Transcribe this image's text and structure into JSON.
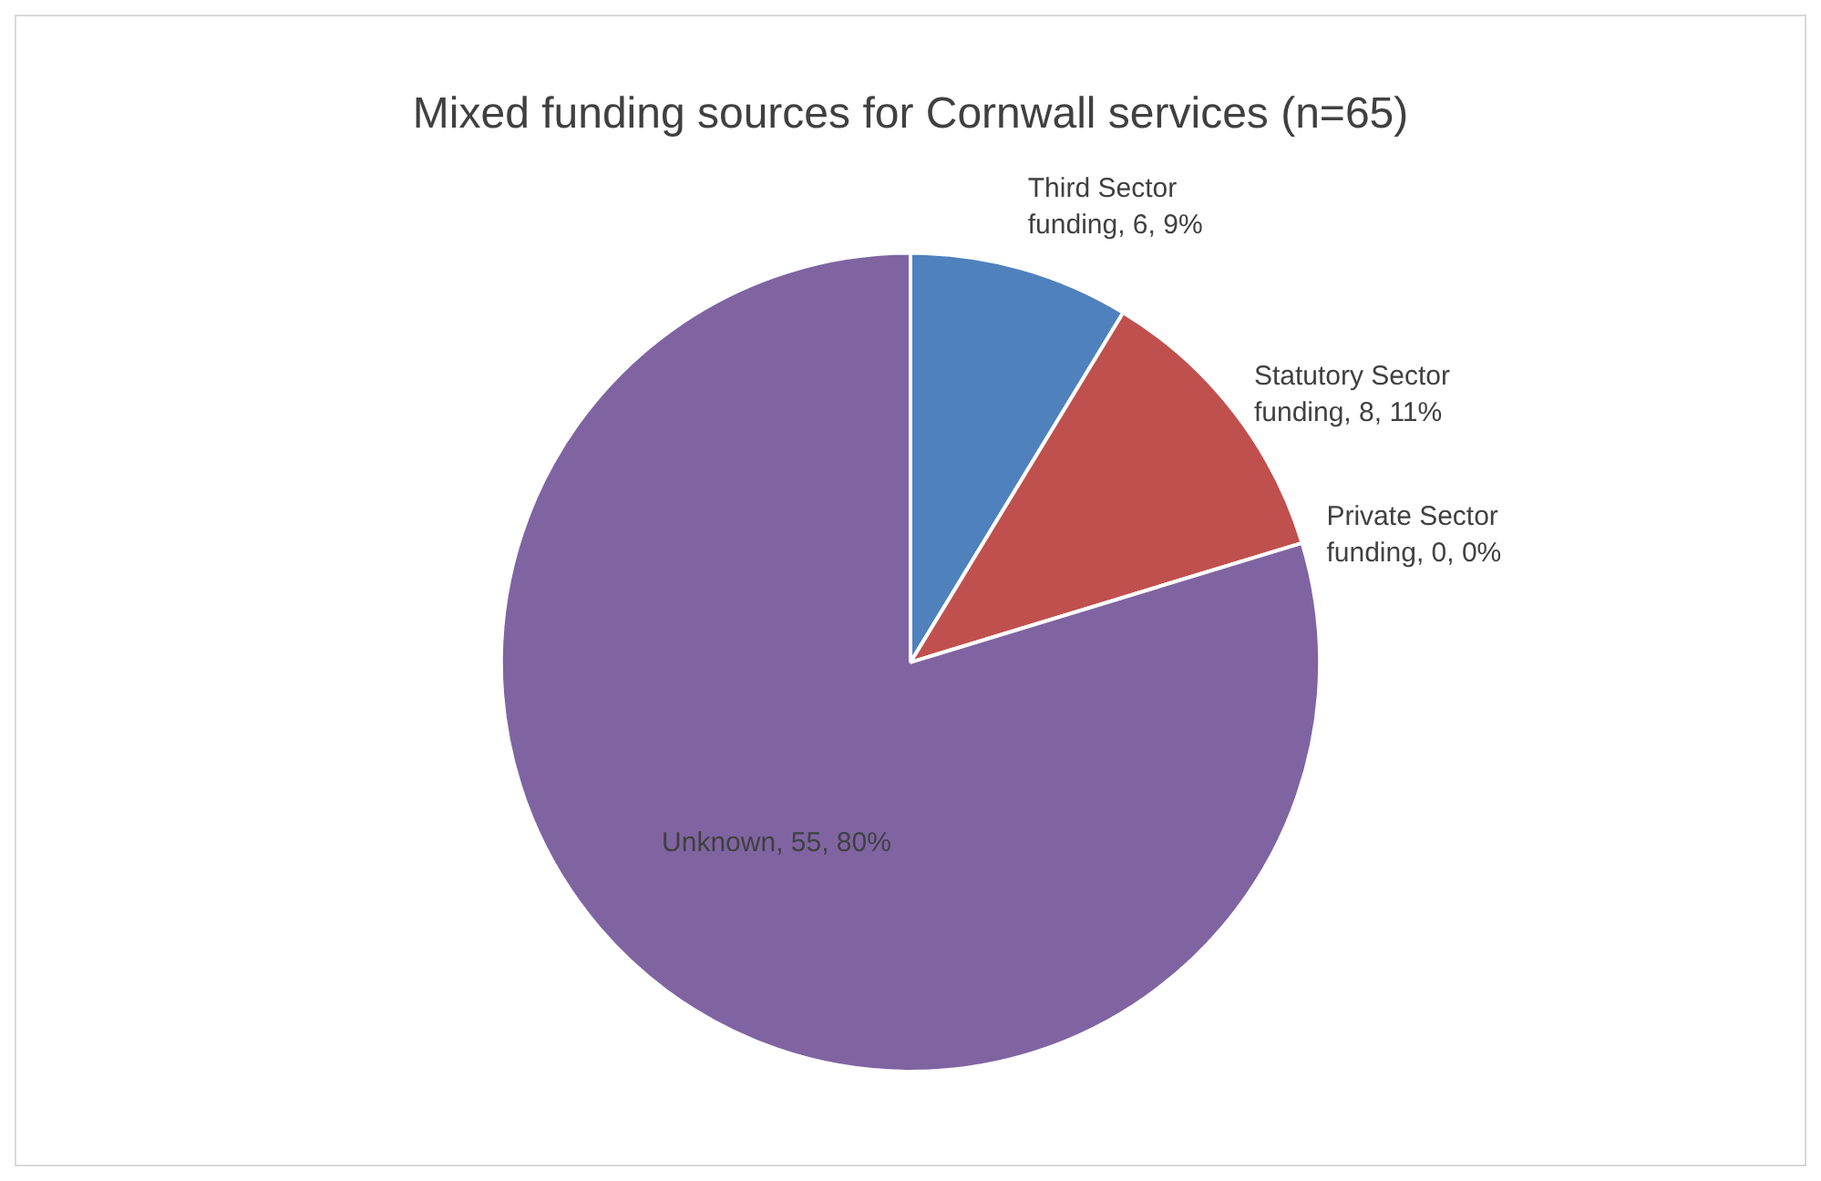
{
  "chart_data": {
    "type": "pie",
    "title": "Mixed funding sources for Cornwall services (n=65)",
    "categories": [
      "Third Sector funding",
      "Statutory Sector funding",
      "Private Sector funding",
      "Unknown"
    ],
    "values": [
      6,
      8,
      0,
      55
    ],
    "colors": [
      "#4f81bd",
      "#c0504d",
      "#9bbb59",
      "#8064a2"
    ],
    "value_labels": [
      ", 6, 9%",
      ", 8, 11%",
      ", 0, 0%",
      ", 55, 80%"
    ],
    "legend": false
  }
}
